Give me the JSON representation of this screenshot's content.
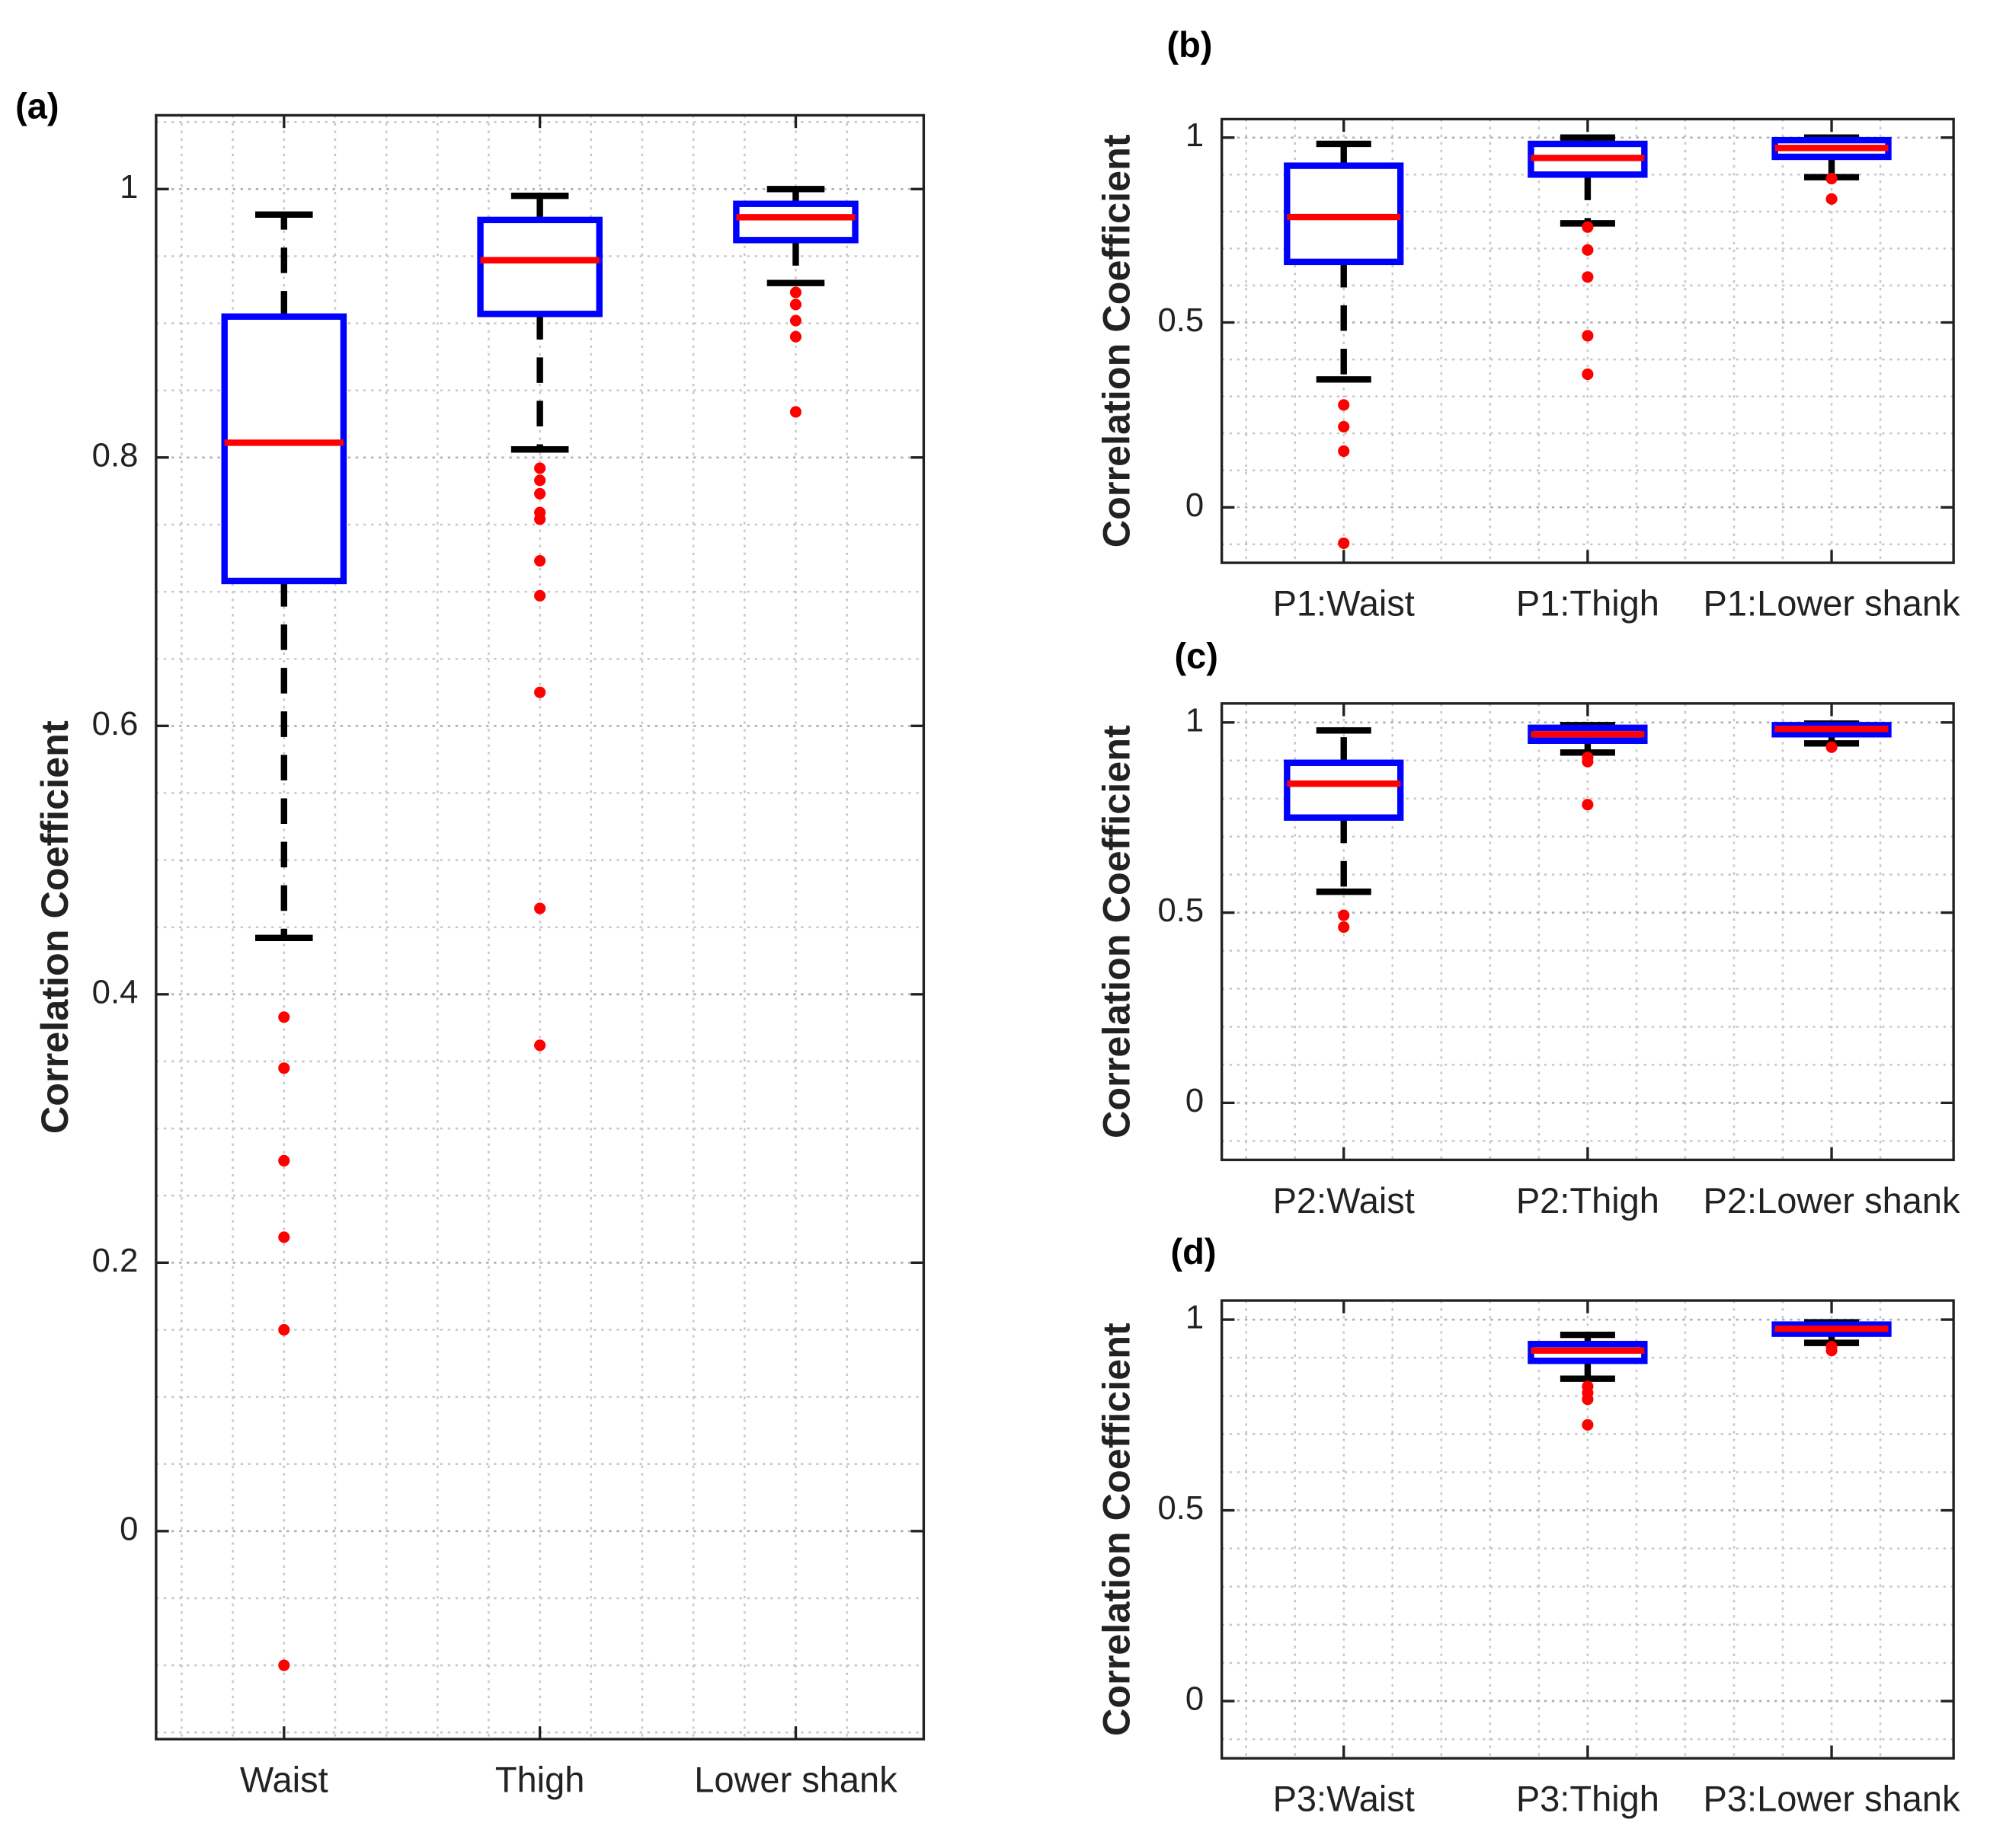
{
  "chart_data": [
    {
      "type": "box",
      "panel_label": "(a)",
      "ylabel": "Correlation Coefficient",
      "categories": [
        "Waist",
        "Thigh",
        "Lower shank"
      ],
      "boxes": [
        {
          "whislo": 0.442,
          "q1": 0.708,
          "med": 0.811,
          "q3": 0.905,
          "whishi": 0.981,
          "fliers": [
            0.383,
            0.345,
            0.276,
            0.219,
            0.15,
            -0.1
          ]
        },
        {
          "whislo": 0.806,
          "q1": 0.907,
          "med": 0.947,
          "q3": 0.977,
          "whishi": 0.995,
          "fliers": [
            0.792,
            0.783,
            0.773,
            0.759,
            0.754,
            0.723,
            0.697,
            0.625,
            0.464,
            0.362
          ]
        },
        {
          "whislo": 0.93,
          "q1": 0.962,
          "med": 0.979,
          "q3": 0.989,
          "whishi": 1.0,
          "fliers": [
            0.923,
            0.914,
            0.902,
            0.89,
            0.834
          ]
        }
      ],
      "ylim": [
        -0.155,
        1.055
      ],
      "yticks": [
        0,
        0.2,
        0.4,
        0.6,
        0.8,
        1
      ],
      "grid": true,
      "box_color": "#0000ff",
      "median_color": "#ff0000",
      "whisker_color": "#000000",
      "flier_color": "#ff0000"
    },
    {
      "type": "box",
      "panel_label": "(b)",
      "ylabel": "Correlation Coefficient",
      "categories": [
        "P1:Waist",
        "P1:Thigh",
        "P1:Lower shank"
      ],
      "boxes": [
        {
          "whislo": 0.346,
          "q1": 0.664,
          "med": 0.785,
          "q3": 0.924,
          "whishi": 0.983,
          "fliers": [
            0.277,
            0.218,
            0.152,
            -0.097
          ]
        },
        {
          "whislo": 0.768,
          "q1": 0.9,
          "med": 0.945,
          "q3": 0.983,
          "whishi": 1.0,
          "fliers": [
            0.758,
            0.696,
            0.623,
            0.464,
            0.36
          ]
        },
        {
          "whislo": 0.893,
          "q1": 0.948,
          "med": 0.972,
          "q3": 0.993,
          "whishi": 1.0,
          "fliers": [
            0.889,
            0.834
          ]
        }
      ],
      "ylim": [
        -0.15,
        1.05
      ],
      "yticks": [
        0,
        0.5,
        1
      ],
      "grid": true,
      "box_color": "#0000ff",
      "median_color": "#ff0000",
      "whisker_color": "#000000",
      "flier_color": "#ff0000"
    },
    {
      "type": "box",
      "panel_label": "(c)",
      "ylabel": "Correlation Coefficient",
      "categories": [
        "P2:Waist",
        "P2:Thigh",
        "P2:Lower shank"
      ],
      "boxes": [
        {
          "whislo": 0.555,
          "q1": 0.75,
          "med": 0.839,
          "q3": 0.894,
          "whishi": 0.979,
          "fliers": [
            0.493,
            0.462
          ]
        },
        {
          "whislo": 0.921,
          "q1": 0.952,
          "med": 0.969,
          "q3": 0.986,
          "whishi": 0.993,
          "fliers": [
            0.908,
            0.897,
            0.784
          ]
        },
        {
          "whislo": 0.945,
          "q1": 0.969,
          "med": 0.983,
          "q3": 0.993,
          "whishi": 0.997,
          "fliers": [
            0.935
          ]
        }
      ],
      "ylim": [
        -0.15,
        1.05
      ],
      "yticks": [
        0,
        0.5,
        1
      ],
      "grid": true,
      "box_color": "#0000ff",
      "median_color": "#ff0000",
      "whisker_color": "#000000",
      "flier_color": "#ff0000"
    },
    {
      "type": "box",
      "panel_label": "(d)",
      "ylabel": "Correlation Coefficient",
      "categories": [
        "P3:Waist",
        "P3:Thigh",
        "P3:Lower shank"
      ],
      "boxes": [
        null,
        {
          "whislo": 0.845,
          "q1": 0.892,
          "med": 0.919,
          "q3": 0.936,
          "whishi": 0.96,
          "fliers": [
            0.825,
            0.808,
            0.791,
            0.724
          ]
        },
        {
          "whislo": 0.939,
          "q1": 0.963,
          "med": 0.976,
          "q3": 0.987,
          "whishi": 0.993,
          "fliers": [
            0.929,
            0.919
          ]
        }
      ],
      "ylim": [
        -0.15,
        1.05
      ],
      "yticks": [
        0,
        0.5,
        1
      ],
      "grid": true,
      "box_color": "#0000ff",
      "median_color": "#ff0000",
      "whisker_color": "#000000",
      "flier_color": "#ff0000"
    }
  ]
}
